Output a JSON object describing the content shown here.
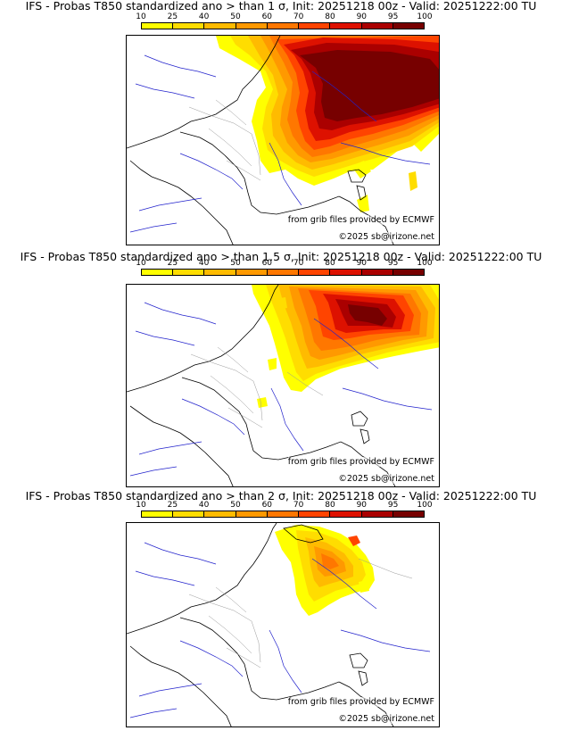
{
  "colorbar": {
    "labels": [
      "10",
      "25",
      "40",
      "50",
      "60",
      "70",
      "80",
      "90",
      "95",
      "100"
    ],
    "colors": [
      "#ffff00",
      "#ffdd00",
      "#ffbb00",
      "#ff9900",
      "#ff7700",
      "#ff4400",
      "#dd1100",
      "#aa0000",
      "#770000"
    ]
  },
  "panels": [
    {
      "title": "IFS - Probas T850  standardized ano > than 1 σ, Init: 20251218 00z - Valid: 20251222:00 TU",
      "source_credit": "from grib files provided by ECMWF",
      "copyright": "©2025 sb@irizone.net"
    },
    {
      "title": "IFS - Probas T850  standardized ano > than 1.5 σ, Init: 20251218 00z - Valid: 20251222:00 TU",
      "source_credit": "from grib files provided by ECMWF",
      "copyright": "©2025 sb@irizone.net"
    },
    {
      "title": "IFS - Probas T850  standardized ano > than 2 σ, Init: 20251218 00z - Valid: 20251222:00 TU",
      "source_credit": "from grib files provided by ECMWF",
      "copyright": "©2025 sb@irizone.net"
    }
  ]
}
